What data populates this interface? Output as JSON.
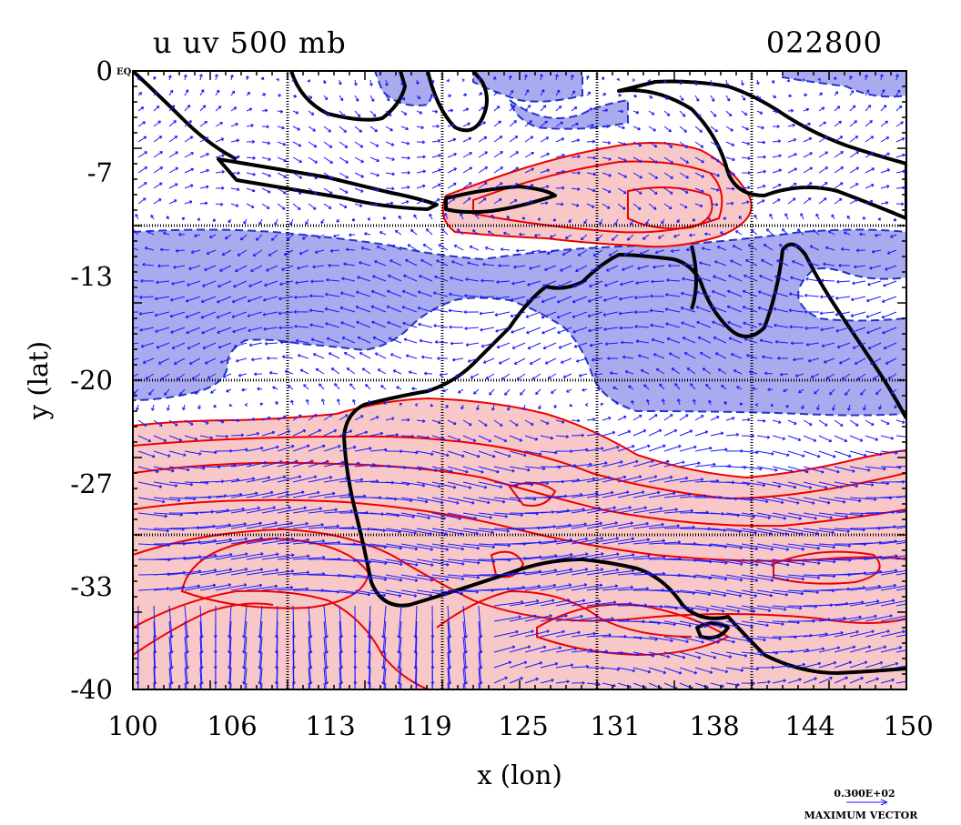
{
  "header": {
    "title": "u uv 500 mb",
    "timestamp": "022800"
  },
  "axes": {
    "xlabel": "x (lon)",
    "ylabel": "y (lat)",
    "xticks": [
      "100",
      "106",
      "113",
      "119",
      "125",
      "131",
      "138",
      "144",
      "150"
    ],
    "yticks": [
      "0",
      "-7",
      "-13",
      "-20",
      "-27",
      "-33",
      "-40"
    ],
    "corner_label": "EQ",
    "xlim": [
      100,
      150
    ],
    "ylim": [
      -40,
      0
    ]
  },
  "legend": {
    "vector_value": "0.300E+02",
    "vector_caption": "MAXIMUM VECTOR"
  },
  "colors": {
    "positive_fill": "#f8c8c8",
    "positive_line": "#ee0000",
    "negative_fill": "#aaaaee",
    "negative_line": "#2233cc",
    "vector": "#1a1aff",
    "coast": "#000000"
  }
}
